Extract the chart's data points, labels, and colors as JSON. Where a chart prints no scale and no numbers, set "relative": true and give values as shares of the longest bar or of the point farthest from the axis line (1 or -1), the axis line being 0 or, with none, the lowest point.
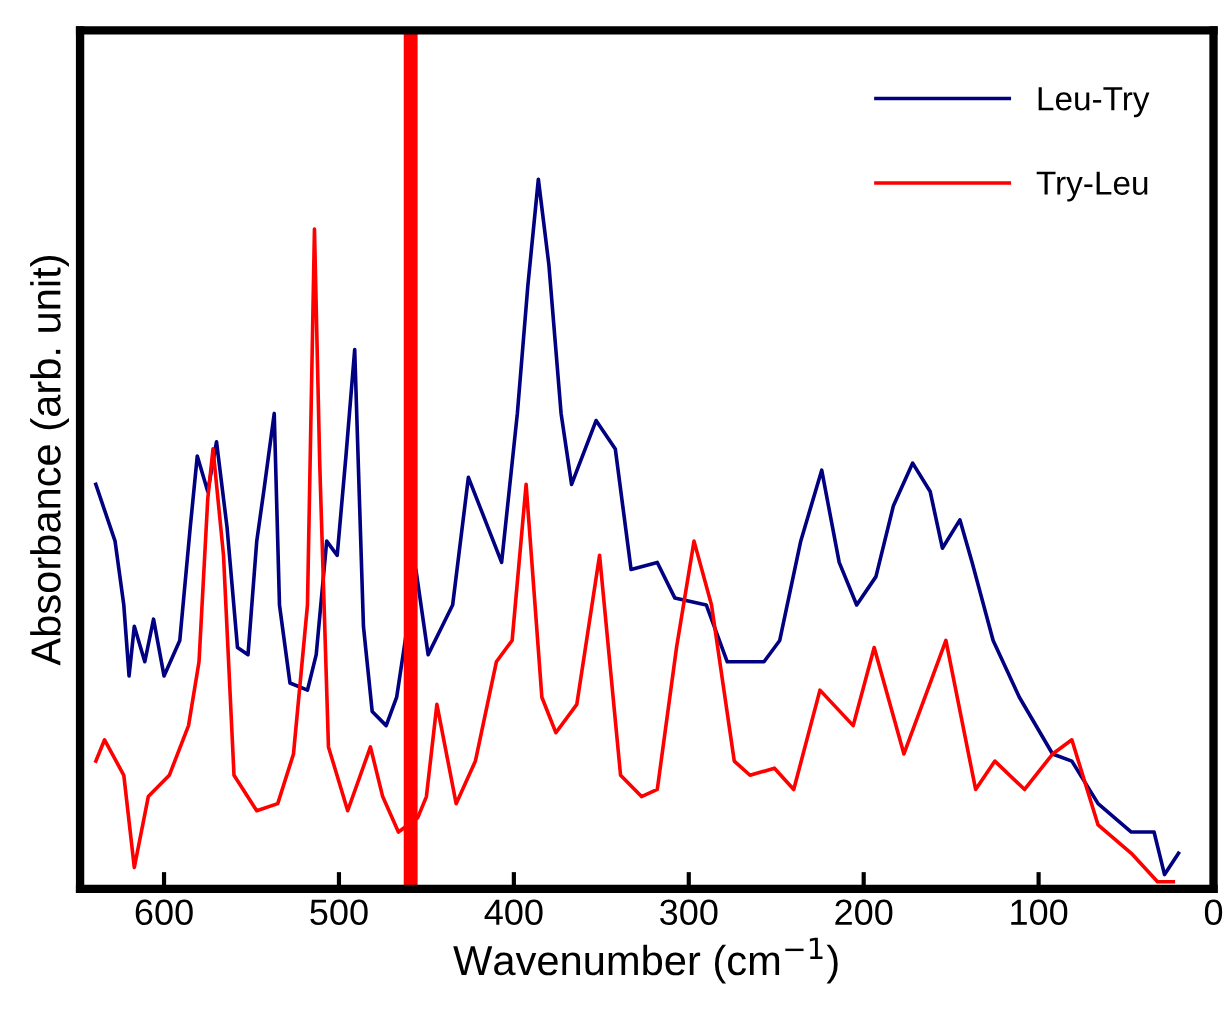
{
  "chart_data": {
    "type": "line",
    "xlabel": "Wavenumber (cm$^{−1}$)",
    "ylabel": "Absorbance (arb. unit)",
    "relative": true,
    "xlim": [
      648,
      0
    ],
    "xticks": [
      600,
      500,
      400,
      300,
      200,
      100,
      0
    ],
    "grid": false,
    "legend": "top right",
    "marker": "none",
    "line_style": "solid",
    "ref_lines": [
      {
        "axis": "x",
        "value": 459,
        "color": "#ff0000"
      }
    ],
    "series": [
      {
        "name": "Leu-Try",
        "color": "#000080",
        "x": [
          639,
          628,
          623,
          620,
          617,
          611,
          606,
          600,
          591,
          585,
          581,
          575,
          570,
          564,
          558,
          552,
          547,
          543,
          537,
          534,
          528,
          518,
          513,
          507,
          501,
          496,
          491,
          486,
          481,
          473,
          467,
          456,
          449,
          441,
          435,
          426,
          407,
          398,
          392,
          386,
          380,
          373,
          367,
          353,
          342,
          333,
          318,
          308,
          290,
          278,
          257,
          248,
          236,
          224,
          214,
          204,
          193,
          183,
          172,
          162,
          155,
          145,
          138,
          126,
          111,
          92,
          81,
          66,
          47,
          34,
          28,
          20
        ],
        "values": [
          0.57,
          0.49,
          0.4,
          0.3,
          0.37,
          0.32,
          0.38,
          0.3,
          0.35,
          0.51,
          0.61,
          0.56,
          0.63,
          0.51,
          0.34,
          0.33,
          0.49,
          0.56,
          0.67,
          0.4,
          0.29,
          0.28,
          0.33,
          0.49,
          0.47,
          0.61,
          0.76,
          0.37,
          0.25,
          0.23,
          0.27,
          0.45,
          0.33,
          0.37,
          0.4,
          0.58,
          0.46,
          0.67,
          0.85,
          1,
          0.88,
          0.67,
          0.57,
          0.66,
          0.62,
          0.45,
          0.46,
          0.41,
          0.4,
          0.32,
          0.32,
          0.35,
          0.49,
          0.59,
          0.46,
          0.4,
          0.44,
          0.54,
          0.6,
          0.56,
          0.48,
          0.52,
          0.46,
          0.35,
          0.27,
          0.19,
          0.18,
          0.12,
          0.08,
          0.08,
          0.02,
          0.05
        ]
      },
      {
        "name": "Try-Leu",
        "color": "#ff0000",
        "x": [
          639,
          634,
          623,
          617,
          609,
          597,
          586,
          580,
          575,
          572,
          566,
          560,
          547,
          535,
          526,
          518,
          514,
          511,
          506,
          495,
          482,
          475,
          466,
          455,
          450,
          444,
          433,
          422,
          410,
          401,
          393,
          384,
          376,
          364,
          351,
          339,
          327,
          318,
          307,
          297,
          287,
          274,
          265,
          251,
          240,
          225,
          206,
          194,
          177,
          162,
          153,
          136,
          125,
          108,
          92,
          81,
          66,
          47,
          32,
          23
        ],
        "values": [
          0.18,
          0.21,
          0.16,
          0.03,
          0.13,
          0.16,
          0.23,
          0.32,
          0.55,
          0.62,
          0.47,
          0.16,
          0.11,
          0.12,
          0.19,
          0.4,
          0.93,
          0.6,
          0.2,
          0.11,
          0.2,
          0.13,
          0.08,
          0.1,
          0.13,
          0.26,
          0.12,
          0.18,
          0.32,
          0.35,
          0.57,
          0.27,
          0.22,
          0.26,
          0.47,
          0.16,
          0.13,
          0.14,
          0.34,
          0.49,
          0.4,
          0.18,
          0.16,
          0.17,
          0.14,
          0.28,
          0.23,
          0.34,
          0.19,
          0.29,
          0.35,
          0.14,
          0.18,
          0.14,
          0.19,
          0.21,
          0.09,
          0.05,
          0.01,
          0.01
        ]
      }
    ]
  }
}
